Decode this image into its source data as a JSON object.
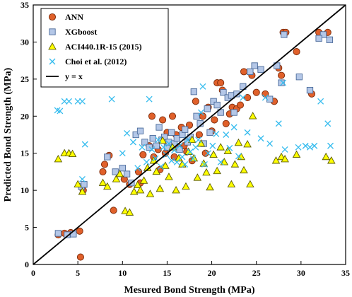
{
  "chart_data": {
    "type": "scatter",
    "xlabel": "Mesured Bond Strength (MPa)",
    "ylabel": "Predicted Bond Strength (MPa)",
    "xlim": [
      0,
      35
    ],
    "ylim": [
      0,
      35
    ],
    "xticks": [
      0,
      5,
      10,
      15,
      20,
      25,
      30,
      35
    ],
    "yticks": [
      0,
      5,
      10,
      15,
      20,
      25,
      30,
      35
    ],
    "grid": false,
    "legend_position": "top-left",
    "series": [
      {
        "name": "ANN",
        "marker": "circle",
        "fill": "#e0602a",
        "stroke": "#7a2a0a",
        "points": [
          [
            2.8,
            4.0
          ],
          [
            3.5,
            4.2
          ],
          [
            4.2,
            4.3
          ],
          [
            5.2,
            4.5
          ],
          [
            5.3,
            1.0
          ],
          [
            5.6,
            10.0
          ],
          [
            7.8,
            12.5
          ],
          [
            8.0,
            13.5
          ],
          [
            8.5,
            14.7
          ],
          [
            9.0,
            7.3
          ],
          [
            10.2,
            11.5
          ],
          [
            10.8,
            10.8
          ],
          [
            11.8,
            12.5
          ],
          [
            12.0,
            11.0
          ],
          [
            12.3,
            14.8
          ],
          [
            13.0,
            16.0
          ],
          [
            13.3,
            20.0
          ],
          [
            13.5,
            14.5
          ],
          [
            14.0,
            15.5
          ],
          [
            14.2,
            12.8
          ],
          [
            14.5,
            19.5
          ],
          [
            14.8,
            15.0
          ],
          [
            15.0,
            17.8
          ],
          [
            15.3,
            16.2
          ],
          [
            15.6,
            20.0
          ],
          [
            15.8,
            14.5
          ],
          [
            16.0,
            17.5
          ],
          [
            16.3,
            15.8
          ],
          [
            16.6,
            18.5
          ],
          [
            16.9,
            16.0
          ],
          [
            17.2,
            15.2
          ],
          [
            17.5,
            18.8
          ],
          [
            17.8,
            14.0
          ],
          [
            18.2,
            22.0
          ],
          [
            18.6,
            17.5
          ],
          [
            19.0,
            20.0
          ],
          [
            19.3,
            15.0
          ],
          [
            19.6,
            21.2
          ],
          [
            20.0,
            18.0
          ],
          [
            20.3,
            19.5
          ],
          [
            20.6,
            24.5
          ],
          [
            21.0,
            24.5
          ],
          [
            21.2,
            23.5
          ],
          [
            21.6,
            19.0
          ],
          [
            22.0,
            20.3
          ],
          [
            22.3,
            21.2
          ],
          [
            22.8,
            21.0
          ],
          [
            23.2,
            21.5
          ],
          [
            23.6,
            26.0
          ],
          [
            24.0,
            22.5
          ],
          [
            24.5,
            25.5
          ],
          [
            25.0,
            23.2
          ],
          [
            26.0,
            23.0
          ],
          [
            27.0,
            22.0
          ],
          [
            27.5,
            26.5
          ],
          [
            27.8,
            25.5
          ],
          [
            28.0,
            31.3
          ],
          [
            28.3,
            31.3
          ],
          [
            29.5,
            28.7
          ],
          [
            31.2,
            23.0
          ],
          [
            32.0,
            31.3
          ],
          [
            33.0,
            31.3
          ]
        ]
      },
      {
        "name": "XGboost",
        "marker": "square",
        "fill": "#b4c7e7",
        "stroke": "#4a6a9a",
        "points": [
          [
            2.8,
            4.2
          ],
          [
            3.8,
            4.0
          ],
          [
            4.5,
            4.1
          ],
          [
            5.4,
            10.5
          ],
          [
            5.7,
            10.8
          ],
          [
            8.3,
            14.5
          ],
          [
            9.2,
            12.5
          ],
          [
            10.0,
            13.0
          ],
          [
            10.5,
            12.2
          ],
          [
            11.0,
            11.0
          ],
          [
            11.5,
            17.5
          ],
          [
            12.0,
            18.0
          ],
          [
            12.5,
            16.5
          ],
          [
            13.0,
            15.8
          ],
          [
            13.4,
            17.0
          ],
          [
            13.8,
            16.0
          ],
          [
            14.1,
            18.5
          ],
          [
            14.4,
            16.8
          ],
          [
            14.7,
            17.2
          ],
          [
            15.0,
            15.8
          ],
          [
            15.2,
            16.5
          ],
          [
            15.5,
            17.8
          ],
          [
            15.8,
            16.3
          ],
          [
            16.1,
            17.0
          ],
          [
            16.4,
            15.5
          ],
          [
            16.7,
            17.5
          ],
          [
            17.0,
            18.2
          ],
          [
            17.3,
            16.5
          ],
          [
            17.6,
            17.2
          ],
          [
            18.0,
            23.3
          ],
          [
            18.3,
            20.0
          ],
          [
            18.7,
            19.0
          ],
          [
            19.1,
            16.3
          ],
          [
            19.5,
            21.0
          ],
          [
            19.8,
            17.8
          ],
          [
            20.2,
            22.0
          ],
          [
            20.6,
            21.5
          ],
          [
            21.0,
            20.5
          ],
          [
            21.3,
            23.2
          ],
          [
            21.8,
            22.5
          ],
          [
            22.2,
            22.8
          ],
          [
            22.5,
            20.5
          ],
          [
            22.8,
            23.0
          ],
          [
            23.5,
            24.0
          ],
          [
            24.3,
            26.0
          ],
          [
            24.8,
            26.8
          ],
          [
            25.5,
            26.3
          ],
          [
            26.5,
            22.3
          ],
          [
            27.3,
            26.8
          ],
          [
            27.8,
            24.5
          ],
          [
            28.1,
            31.0
          ],
          [
            29.8,
            25.3
          ],
          [
            31.0,
            23.5
          ],
          [
            32.5,
            31.0
          ],
          [
            33.2,
            30.3
          ],
          [
            32.0,
            30.5
          ]
        ]
      },
      {
        "name": "ACI440.1R-15 (2015)",
        "marker": "triangle",
        "fill": "#ffff00",
        "stroke": "#5a5a00",
        "points": [
          [
            2.8,
            14.2
          ],
          [
            3.5,
            15.0
          ],
          [
            4.0,
            15.0
          ],
          [
            4.4,
            14.9
          ],
          [
            5.0,
            10.8
          ],
          [
            5.5,
            9.8
          ],
          [
            7.8,
            11.0
          ],
          [
            8.3,
            10.5
          ],
          [
            9.3,
            11.5
          ],
          [
            9.7,
            12.2
          ],
          [
            10.3,
            7.2
          ],
          [
            10.8,
            7.0
          ],
          [
            11.3,
            9.8
          ],
          [
            11.7,
            10.7
          ],
          [
            12.0,
            10.0
          ],
          [
            12.4,
            11.3
          ],
          [
            12.8,
            13.0
          ],
          [
            13.1,
            9.5
          ],
          [
            13.5,
            14.0
          ],
          [
            13.8,
            12.5
          ],
          [
            14.2,
            10.2
          ],
          [
            14.5,
            16.7
          ],
          [
            14.8,
            13.3
          ],
          [
            15.2,
            11.8
          ],
          [
            15.6,
            15.8
          ],
          [
            16.0,
            10.0
          ],
          [
            16.3,
            14.3
          ],
          [
            16.7,
            13.5
          ],
          [
            17.1,
            10.5
          ],
          [
            17.4,
            15.2
          ],
          [
            17.8,
            16.8
          ],
          [
            18.0,
            14.3
          ],
          [
            18.4,
            11.7
          ],
          [
            18.8,
            16.3
          ],
          [
            19.1,
            13.6
          ],
          [
            19.4,
            12.4
          ],
          [
            19.8,
            10.4
          ],
          [
            20.2,
            14.8
          ],
          [
            20.6,
            12.6
          ],
          [
            21.0,
            15.8
          ],
          [
            21.4,
            13.8
          ],
          [
            21.8,
            15.3
          ],
          [
            22.2,
            10.8
          ],
          [
            22.6,
            13.5
          ],
          [
            23.0,
            16.4
          ],
          [
            23.3,
            14.5
          ],
          [
            23.6,
            12.7
          ],
          [
            24.0,
            16.2
          ],
          [
            24.3,
            10.8
          ],
          [
            24.6,
            20.0
          ],
          [
            27.2,
            14.0
          ],
          [
            27.8,
            14.5
          ],
          [
            28.2,
            14.2
          ],
          [
            32.8,
            14.5
          ],
          [
            33.4,
            14.0
          ],
          [
            29.5,
            14.8
          ]
        ]
      },
      {
        "name": "Choi et al. (2012)",
        "marker": "x",
        "fill": "none",
        "stroke": "#33bbee",
        "points": [
          [
            2.7,
            20.8
          ],
          [
            3.0,
            20.7
          ],
          [
            3.5,
            22.0
          ],
          [
            4.0,
            22.0
          ],
          [
            5.0,
            22.0
          ],
          [
            5.5,
            22.0
          ],
          [
            5.5,
            11.5
          ],
          [
            5.8,
            16.2
          ],
          [
            8.8,
            22.3
          ],
          [
            10.0,
            15.0
          ],
          [
            10.5,
            17.7
          ],
          [
            11.2,
            16.5
          ],
          [
            11.7,
            13.0
          ],
          [
            12.2,
            15.8
          ],
          [
            12.7,
            13.8
          ],
          [
            13.0,
            22.3
          ],
          [
            13.3,
            15.5
          ],
          [
            13.7,
            14.3
          ],
          [
            14.0,
            16.8
          ],
          [
            14.3,
            13.2
          ],
          [
            14.6,
            15.8
          ],
          [
            14.9,
            14.8
          ],
          [
            15.2,
            16.3
          ],
          [
            15.5,
            14.0
          ],
          [
            15.8,
            15.4
          ],
          [
            16.1,
            13.8
          ],
          [
            16.4,
            16.0
          ],
          [
            16.7,
            14.5
          ],
          [
            17.0,
            13.5
          ],
          [
            17.3,
            16.8
          ],
          [
            17.6,
            15.2
          ],
          [
            17.9,
            14.3
          ],
          [
            18.2,
            15.8
          ],
          [
            18.5,
            16.8
          ],
          [
            18.8,
            20.5
          ],
          [
            19.2,
            13.5
          ],
          [
            19.6,
            15.0
          ],
          [
            20.1,
            16.0
          ],
          [
            20.5,
            17.6
          ],
          [
            21.0,
            13.8
          ],
          [
            21.6,
            17.5
          ],
          [
            22.0,
            15.7
          ],
          [
            22.5,
            18.5
          ],
          [
            23.0,
            14.6
          ],
          [
            23.5,
            22.5
          ],
          [
            24.0,
            17.8
          ],
          [
            25.5,
            17.0
          ],
          [
            26.0,
            22.5
          ],
          [
            26.5,
            16.3
          ],
          [
            27.5,
            19.0
          ],
          [
            28.0,
            24.5
          ],
          [
            28.2,
            15.5
          ],
          [
            29.7,
            15.8
          ],
          [
            30.5,
            16.0
          ],
          [
            31.5,
            16.0
          ],
          [
            32.2,
            22.0
          ],
          [
            33.0,
            19.0
          ],
          [
            33.3,
            16.0
          ],
          [
            31.0,
            15.8
          ],
          [
            19.0,
            24.0
          ]
        ]
      },
      {
        "name": "y = x",
        "marker": "line",
        "stroke": "#000000",
        "points": [
          [
            0,
            0
          ],
          [
            35,
            35
          ]
        ]
      }
    ]
  }
}
